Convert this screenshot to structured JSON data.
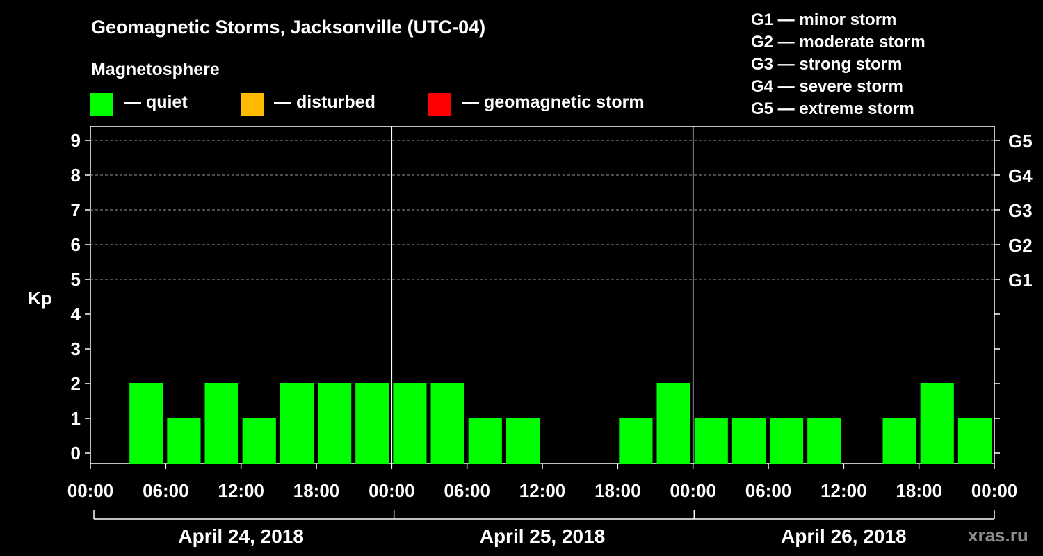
{
  "title": "Geomagnetic Storms, Jacksonville (UTC-04)",
  "subtitle": "Magnetosphere",
  "legend": [
    {
      "label": "— quiet",
      "color": "#00ff00"
    },
    {
      "label": "— disturbed",
      "color": "#ffbb00"
    },
    {
      "label": "— geomagnetic storm",
      "color": "#ff0000"
    }
  ],
  "storm_scale": [
    "G1 — minor storm",
    "G2 — moderate storm",
    "G3 — strong storm",
    "G4 — severe storm",
    "G5 — extreme storm"
  ],
  "watermark": "xras.ru",
  "chart_data": {
    "type": "bar",
    "ylabel": "Kp",
    "ylim": [
      0,
      9
    ],
    "y_ticks": [
      "0",
      "1",
      "2",
      "3",
      "4",
      "5",
      "6",
      "7",
      "8",
      "9"
    ],
    "right_axis_labels": [
      {
        "kp": 5,
        "label": "G1"
      },
      {
        "kp": 6,
        "label": "G2"
      },
      {
        "kp": 7,
        "label": "G3"
      },
      {
        "kp": 8,
        "label": "G4"
      },
      {
        "kp": 9,
        "label": "G5"
      }
    ],
    "x_ticks": [
      "00:00",
      "06:00",
      "12:00",
      "18:00",
      "00:00",
      "06:00",
      "12:00",
      "18:00",
      "00:00",
      "06:00",
      "12:00",
      "18:00",
      "00:00"
    ],
    "days": [
      "April 24, 2018",
      "April 25, 2018",
      "April 26, 2018"
    ],
    "grid": "dashed horizontal at Kp 5-9",
    "series": [
      {
        "color": "#00ff00",
        "values": [
          null,
          2,
          1,
          2,
          1,
          2,
          2,
          2,
          2,
          2,
          1,
          1,
          null,
          null,
          1,
          2,
          1,
          1,
          1,
          1,
          null,
          1,
          2,
          1
        ]
      }
    ]
  }
}
